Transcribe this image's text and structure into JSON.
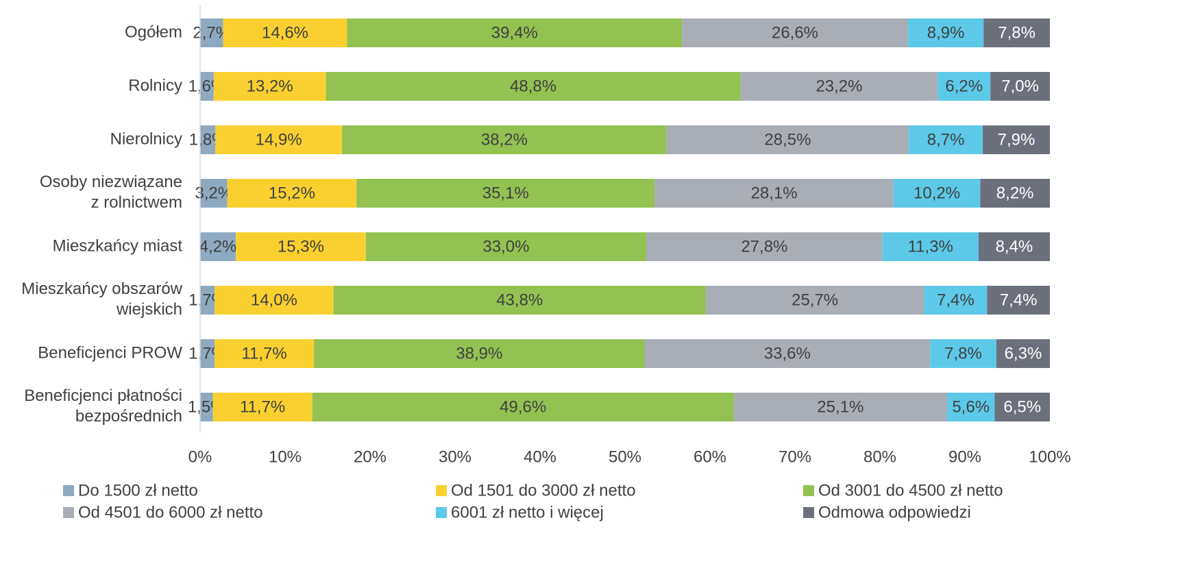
{
  "chart_data": {
    "type": "stacked-barh",
    "categories": [
      "Ogółem",
      "Rolnicy",
      "Nierolnicy",
      "Osoby niezwiązane\nz rolnictwem",
      "Mieszkańcy miast",
      "Mieszkańcy obszarów\nwiejskich",
      "Beneficjenci PROW",
      "Beneficjenci płatności\nbezpośrednich"
    ],
    "series": [
      {
        "name": "Do 1500 zł netto",
        "color": "#8eaac1",
        "label_color": "#404040",
        "values": [
          2.7,
          1.6,
          1.8,
          3.2,
          4.2,
          1.7,
          1.7,
          1.5
        ],
        "value_labels": [
          "2,7%",
          "1,6%",
          "1,8%",
          "3,2%",
          "4,2%",
          "1,7%",
          "1,7%",
          "1,5%"
        ]
      },
      {
        "name": "Od 1501 do 3000 zł netto",
        "color": "#f9d030",
        "label_color": "#404040",
        "values": [
          14.6,
          13.2,
          14.9,
          15.2,
          15.3,
          14.0,
          11.7,
          11.7
        ],
        "value_labels": [
          "14,6%",
          "13,2%",
          "14,9%",
          "15,2%",
          "15,3%",
          "14,0%",
          "11,7%",
          "11,7%"
        ]
      },
      {
        "name": "Od 3001 do 4500 zł netto",
        "color": "#93c152",
        "label_color": "#404040",
        "values": [
          39.4,
          48.8,
          38.2,
          35.1,
          33.0,
          43.8,
          38.9,
          49.6
        ],
        "value_labels": [
          "39,4%",
          "48,8%",
          "38,2%",
          "35,1%",
          "33,0%",
          "43,8%",
          "38,9%",
          "49,6%"
        ]
      },
      {
        "name": "Od 4501 do 6000 zł netto",
        "color": "#a9adb5",
        "label_color": "#404040",
        "values": [
          26.6,
          23.2,
          28.5,
          28.1,
          27.8,
          25.7,
          33.6,
          25.1
        ],
        "value_labels": [
          "26,6%",
          "23,2%",
          "28,5%",
          "28,1%",
          "27,8%",
          "25,7%",
          "33,6%",
          "25,1%"
        ]
      },
      {
        "name": "6001 zł netto i więcej",
        "color": "#5dc9e9",
        "label_color": "#404040",
        "values": [
          8.9,
          6.2,
          8.7,
          10.2,
          11.3,
          7.4,
          7.8,
          5.6
        ],
        "value_labels": [
          "8,9%",
          "6,2%",
          "8,7%",
          "10,2%",
          "11,3%",
          "7,4%",
          "7,8%",
          "5,6%"
        ]
      },
      {
        "name": "Odmowa odpowiedzi",
        "color": "#6b707c",
        "label_color": "#ffffff",
        "values": [
          7.8,
          7.0,
          7.9,
          8.2,
          8.4,
          7.4,
          6.3,
          6.5
        ],
        "value_labels": [
          "7,8%",
          "7,0%",
          "7,9%",
          "8,2%",
          "8,4%",
          "7,4%",
          "6,3%",
          "6,5%"
        ]
      }
    ],
    "xlim": [
      0,
      100
    ],
    "xticks": [
      {
        "value": 0,
        "label": "0%"
      },
      {
        "value": 10,
        "label": "10%"
      },
      {
        "value": 20,
        "label": "20%"
      },
      {
        "value": 30,
        "label": "30%"
      },
      {
        "value": 40,
        "label": "40%"
      },
      {
        "value": 50,
        "label": "50%"
      },
      {
        "value": 60,
        "label": "60%"
      },
      {
        "value": 70,
        "label": "70%"
      },
      {
        "value": 80,
        "label": "80%"
      },
      {
        "value": 90,
        "label": "90%"
      },
      {
        "value": 100,
        "label": "100%"
      }
    ],
    "grid": false,
    "legend": "bottom"
  }
}
